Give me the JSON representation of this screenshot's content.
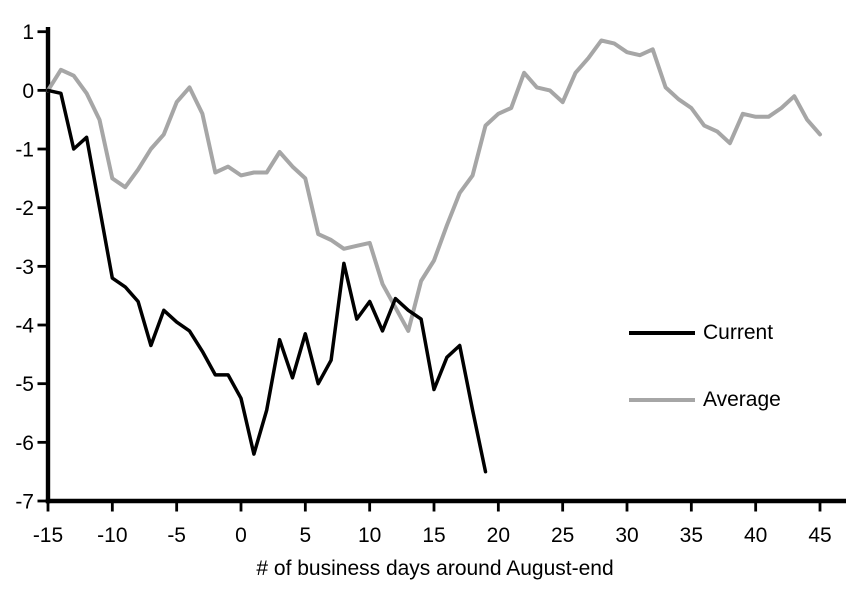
{
  "chart_data": {
    "type": "line",
    "title": "",
    "xlabel": "# of business days around August-end",
    "ylabel": "",
    "xlim": [
      -15,
      45
    ],
    "ylim": [
      -7,
      1
    ],
    "x_ticks": [
      -15,
      -10,
      -5,
      0,
      5,
      10,
      15,
      20,
      25,
      30,
      35,
      40,
      45
    ],
    "y_ticks": [
      1,
      0,
      -1,
      -2,
      -3,
      -4,
      -5,
      -6,
      -7
    ],
    "grid": false,
    "legend_position": "right-middle",
    "axis_color": "#000000",
    "background": "#ffffff",
    "series": [
      {
        "name": "Current",
        "color": "#000000",
        "line_width": 3.5,
        "x_start": -15,
        "x_step": 1,
        "values": [
          0,
          -0.05,
          -1.0,
          -0.8,
          -2.0,
          -3.2,
          -3.35,
          -3.6,
          -4.35,
          -3.75,
          -3.95,
          -4.1,
          -4.45,
          -4.85,
          -4.85,
          -5.25,
          -6.2,
          -5.45,
          -4.25,
          -4.9,
          -4.15,
          -5.0,
          -4.6,
          -2.95,
          -3.9,
          -3.6,
          -4.1,
          -3.55,
          -3.75,
          -3.9,
          -5.1,
          -4.55,
          -4.35,
          -5.45,
          -6.5
        ]
      },
      {
        "name": "Average",
        "color": "#a6a6a6",
        "line_width": 4,
        "x_start": -15,
        "x_step": 1,
        "values": [
          0,
          0.35,
          0.25,
          -0.05,
          -0.5,
          -1.5,
          -1.65,
          -1.35,
          -1.0,
          -0.75,
          -0.2,
          0.05,
          -0.4,
          -1.4,
          -1.3,
          -1.45,
          -1.4,
          -1.4,
          -1.05,
          -1.3,
          -1.5,
          -2.45,
          -2.55,
          -2.7,
          -2.65,
          -2.6,
          -3.3,
          -3.7,
          -4.1,
          -3.25,
          -2.9,
          -2.3,
          -1.75,
          -1.45,
          -0.6,
          -0.4,
          -0.3,
          0.3,
          0.05,
          0.0,
          -0.2,
          0.3,
          0.55,
          0.85,
          0.8,
          0.65,
          0.6,
          0.7,
          0.05,
          -0.15,
          -0.3,
          -0.6,
          -0.7,
          -0.9,
          -0.4,
          -0.45,
          -0.45,
          -0.3,
          -0.1,
          -0.5,
          -0.75
        ]
      }
    ]
  }
}
